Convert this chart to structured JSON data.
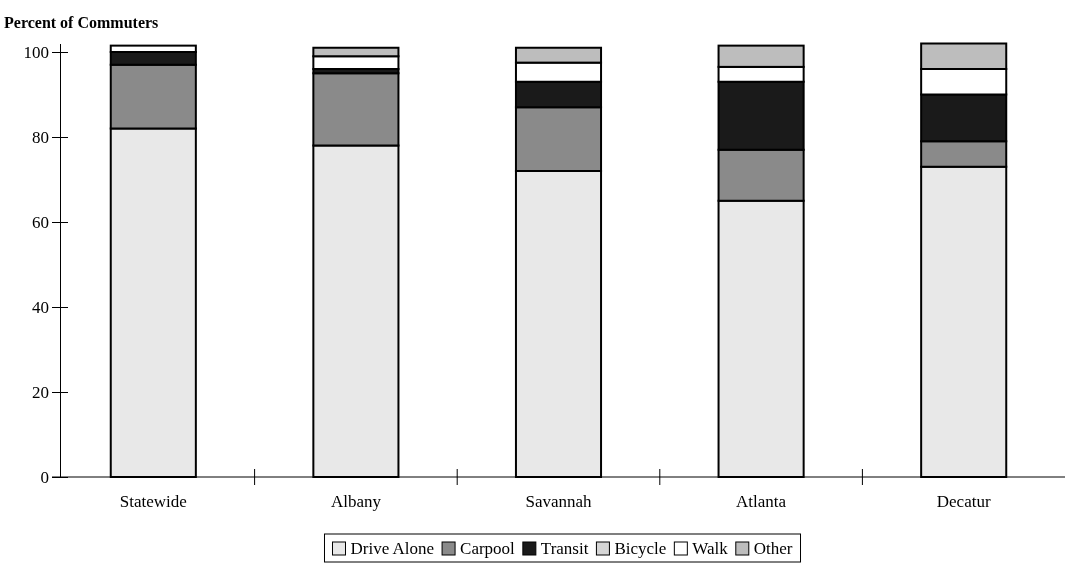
{
  "chart_data": {
    "type": "bar",
    "stacked": true,
    "ylabel": "Percent of Commuters",
    "categories": [
      "Statewide",
      "Albany",
      "Savannah",
      "Atlanta",
      "Decatur"
    ],
    "series": [
      {
        "name": "Drive Alone",
        "color": "#e8e8e8",
        "values": [
          82,
          78,
          72,
          65,
          73
        ]
      },
      {
        "name": "Carpool",
        "color": "#8a8a8a",
        "values": [
          15,
          17,
          15,
          12,
          6
        ]
      },
      {
        "name": "Transit",
        "color": "#1a1a1a",
        "values": [
          3,
          1,
          6,
          16,
          11
        ]
      },
      {
        "name": "Bicycle",
        "color": "#d6d6d6",
        "values": [
          0,
          0,
          0,
          0,
          0
        ]
      },
      {
        "name": "Walk",
        "color": "#ffffff",
        "values": [
          1.5,
          3,
          4.5,
          3.5,
          6
        ]
      },
      {
        "name": "Other",
        "color": "#bdbdbd",
        "values": [
          0,
          2,
          3.5,
          5,
          6
        ]
      }
    ],
    "ylim": [
      0,
      102
    ],
    "yticks": [
      0,
      20,
      40,
      60,
      80,
      100
    ],
    "grid": false,
    "legend": "bottom"
  }
}
